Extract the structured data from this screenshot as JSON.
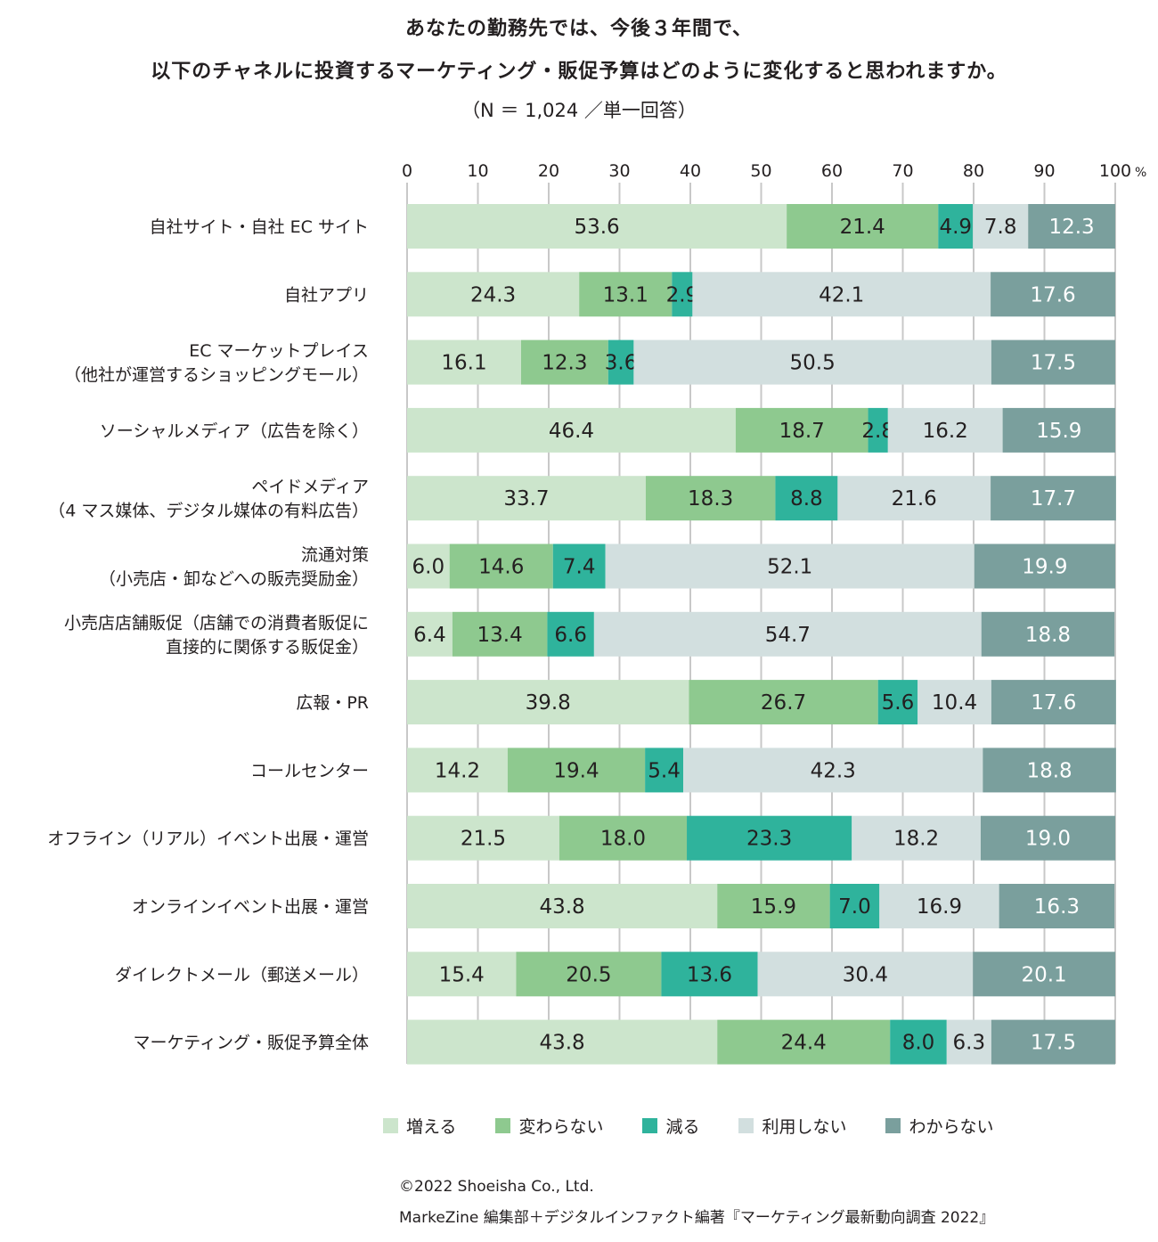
{
  "title_line1": "あなたの勤務先では、今後３年間で、",
  "title_line2": "以下のチャネルに投資するマーケティング・販促予算はどのように変化すると思われますか。",
  "subtitle": "（N ＝ 1,024 ／単一回答）",
  "footer_line1": "©2022 Shoeisha Co., Ltd.",
  "footer_line2": "MarkeZine 編集部＋デジタルインファクト編著『マーケティング最新動向調査 2022』",
  "chart_data": {
    "type": "bar",
    "orientation": "horizontal-stacked",
    "xlim": [
      0,
      100
    ],
    "x_ticks": [
      "0",
      "10",
      "20",
      "30",
      "40",
      "50",
      "60",
      "70",
      "80",
      "90",
      "100"
    ],
    "x_unit": "%",
    "legend_position": "bottom",
    "categories": [
      [
        "自社サイト・自社 EC サイト"
      ],
      [
        "自社アプリ"
      ],
      [
        "EC マーケットプレイス",
        "（他社が運営するショッピングモール）"
      ],
      [
        "ソーシャルメディア（広告を除く）"
      ],
      [
        "ペイドメディア",
        "（4 マス媒体、デジタル媒体の有料広告）"
      ],
      [
        "流通対策",
        "（小売店・卸などへの販売奨励金）"
      ],
      [
        "小売店店舗販促（店舗での消費者販促に",
        "直接的に関係する販促金）"
      ],
      [
        "広報・PR"
      ],
      [
        "コールセンター"
      ],
      [
        "オフライン（リアル）イベント出展・運営"
      ],
      [
        "オンラインイベント出展・運営"
      ],
      [
        "ダイレクトメール（郵送メール）"
      ],
      [
        "マーケティング・販促予算全体"
      ]
    ],
    "series": [
      {
        "name": "増える",
        "color": "#cce5cc",
        "label_color": "#231f20",
        "values": [
          53.6,
          24.3,
          16.1,
          46.4,
          33.7,
          6.0,
          6.4,
          39.8,
          14.2,
          21.5,
          43.8,
          15.4,
          43.8
        ]
      },
      {
        "name": "変わらない",
        "color": "#8ec98f",
        "label_color": "#231f20",
        "values": [
          21.4,
          13.1,
          12.3,
          18.7,
          18.3,
          14.6,
          13.4,
          26.7,
          19.4,
          18.0,
          15.9,
          20.5,
          24.4
        ]
      },
      {
        "name": "減る",
        "color": "#2fb39c",
        "label_color": "#231f20",
        "values": [
          4.9,
          2.9,
          3.6,
          2.8,
          8.8,
          7.4,
          6.6,
          5.6,
          5.4,
          23.3,
          7.0,
          13.6,
          8.0
        ]
      },
      {
        "name": "利用しない",
        "color": "#d2dfdf",
        "label_color": "#231f20",
        "values": [
          7.8,
          42.1,
          50.5,
          16.2,
          21.6,
          52.1,
          54.7,
          10.4,
          42.3,
          18.2,
          16.9,
          30.4,
          6.3
        ]
      },
      {
        "name": "わからない",
        "color": "#7a9f9d",
        "label_color": "#ffffff",
        "values": [
          12.3,
          17.6,
          17.5,
          15.9,
          17.7,
          19.9,
          18.8,
          17.6,
          18.8,
          19.0,
          16.3,
          20.1,
          17.5
        ]
      }
    ]
  }
}
